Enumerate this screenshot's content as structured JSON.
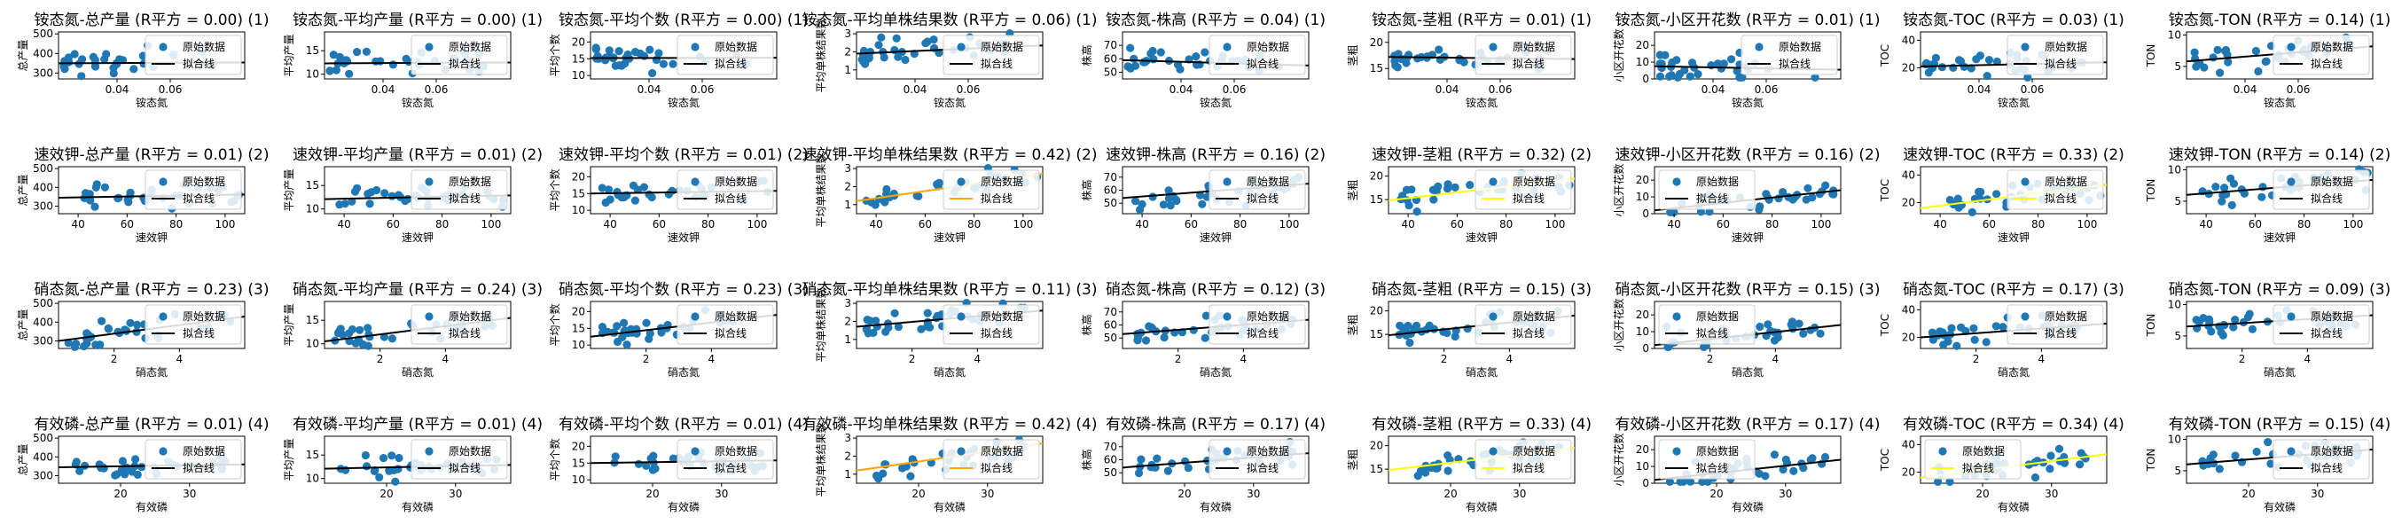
{
  "colors": {
    "points": "#1f77b4",
    "fit_black": "#000000",
    "fit_orange": "#ffa500",
    "fit_yellow": "#ffff00"
  },
  "legend": {
    "raw": "原始数据",
    "fit": "拟合线"
  },
  "chart_data": {
    "type": "scatter",
    "grid": false,
    "rows": [
      {
        "xlabel": "铵态氮",
        "xticks": [
          0.04,
          0.06
        ],
        "xlim": [
          0.018,
          0.088
        ],
        "kind": "amm",
        "plots": [
          {
            "title": "铵态氮-总产量 (R平方 = 0.00) (1)",
            "ylabel": "总产量",
            "ylim": [
              270,
              510
            ],
            "yticks": [
              300,
              400,
              500
            ],
            "fit": [
              [
                0.018,
                350
              ],
              [
                0.088,
                354
              ]
            ],
            "fit_color": "black",
            "legend": "right"
          },
          {
            "title": "铵态氮-平均产量 (R平方 = 0.00) (1)",
            "ylabel": "平均产量",
            "ylim": [
              9,
              19
            ],
            "yticks": [
              10,
              15
            ],
            "fit": [
              [
                0.018,
                12.3
              ],
              [
                0.088,
                12.5
              ]
            ],
            "fit_color": "black",
            "legend": "right"
          },
          {
            "title": "铵态氮-平均个数 (R平方 = 0.00) (1)",
            "ylabel": "平均个数",
            "ylim": [
              9,
              23
            ],
            "yticks": [
              10,
              15,
              20
            ],
            "fit": [
              [
                0.018,
                15.2
              ],
              [
                0.088,
                15.3
              ]
            ],
            "fit_color": "black",
            "legend": "right"
          },
          {
            "title": "铵态氮-平均单株结果数 (R平方 = 0.06) (1)",
            "ylabel": "平均单株结果数",
            "ylim": [
              0.5,
              3.1
            ],
            "yticks": [
              1,
              2,
              3
            ],
            "fit": [
              [
                0.018,
                1.9
              ],
              [
                0.088,
                2.35
              ]
            ],
            "fit_color": "black",
            "legend": "right"
          },
          {
            "title": "铵态氮-株高 (R平方 = 0.04) (1)",
            "ylabel": "株高",
            "ylim": [
              45,
              80
            ],
            "yticks": [
              50,
              60,
              70
            ],
            "fit": [
              [
                0.018,
                59
              ],
              [
                0.088,
                55
              ]
            ],
            "fit_color": "black",
            "legend": "right"
          },
          {
            "title": "铵态氮-茎粗 (R平方 = 0.01) (1)",
            "ylabel": "茎粗",
            "ylim": [
              13,
              22
            ],
            "yticks": [
              15,
              20
            ],
            "fit": [
              [
                0.018,
                17.2
              ],
              [
                0.088,
                16.8
              ]
            ],
            "fit_color": "black",
            "legend": "right"
          },
          {
            "title": "铵态氮-小区开花数 (R平方 = 0.01) (1)",
            "ylabel": "小区开花数",
            "ylim": [
              0,
              28
            ],
            "yticks": [
              0,
              10,
              20
            ],
            "fit": [
              [
                0.018,
                7.5
              ],
              [
                0.088,
                5.5
              ]
            ],
            "fit_color": "black",
            "legend": "right"
          },
          {
            "title": "铵态氮-TOC (R平方 = 0.03) (1)",
            "ylabel": "TOC",
            "ylim": [
              12,
              46
            ],
            "yticks": [
              20,
              40
            ],
            "fit": [
              [
                0.018,
                21
              ],
              [
                0.088,
                24
              ]
            ],
            "fit_color": "black",
            "legend": "right"
          },
          {
            "title": "铵态氮-TON (R平方 = 0.14) (1)",
            "ylabel": "TON",
            "ylim": [
              3,
              10.5
            ],
            "yticks": [
              5,
              10
            ],
            "fit": [
              [
                0.018,
                5.8
              ],
              [
                0.088,
                8.2
              ]
            ],
            "fit_color": "black",
            "legend": "right"
          }
        ]
      },
      {
        "xlabel": "速效钾",
        "xticks": [
          40,
          60,
          80,
          100
        ],
        "xlim": [
          32,
          108
        ],
        "kind": "pot",
        "plots": [
          {
            "title": "速效钾-总产量 (R平方 = 0.01) (2)",
            "ylabel": "总产量",
            "ylim": [
              260,
              510
            ],
            "yticks": [
              300,
              400,
              500
            ],
            "fit": [
              [
                32,
                345
              ],
              [
                108,
                362
              ]
            ],
            "fit_color": "black",
            "legend": "right"
          },
          {
            "title": "速效钾-平均产量 (R平方 = 0.01) (2)",
            "ylabel": "平均产量",
            "ylim": [
              9,
              19
            ],
            "yticks": [
              10,
              15
            ],
            "fit": [
              [
                32,
                12.1
              ],
              [
                108,
                12.9
              ]
            ],
            "fit_color": "black",
            "legend": "right"
          },
          {
            "title": "速效钾-平均个数 (R平方 = 0.01) (2)",
            "ylabel": "平均个数",
            "ylim": [
              9,
              23
            ],
            "yticks": [
              10,
              15,
              20
            ],
            "fit": [
              [
                32,
                15
              ],
              [
                108,
                15.8
              ]
            ],
            "fit_color": "black",
            "legend": "right"
          },
          {
            "title": "速效钾-平均单株结果数 (R平方 = 0.42) (2)",
            "ylabel": "平均单株结果数",
            "ylim": [
              0.5,
              3.1
            ],
            "yticks": [
              1,
              2,
              3
            ],
            "fit": [
              [
                32,
                1.2
              ],
              [
                108,
                2.7
              ]
            ],
            "fit_color": "orange",
            "legend": "right"
          },
          {
            "title": "速效钾-株高 (R平方 = 0.16) (2)",
            "ylabel": "株高",
            "ylim": [
              42,
              78
            ],
            "yticks": [
              50,
              60,
              70
            ],
            "fit": [
              [
                32,
                54
              ],
              [
                108,
                65
              ]
            ],
            "fit_color": "black",
            "legend": "right"
          },
          {
            "title": "速效钾-茎粗 (R平方 = 0.32) (2)",
            "ylabel": "茎粗",
            "ylim": [
              12,
              22
            ],
            "yticks": [
              15,
              20
            ],
            "fit": [
              [
                32,
                14.8
              ],
              [
                108,
                19.5
              ]
            ],
            "fit_color": "yellow",
            "legend": "right"
          },
          {
            "title": "速效钾-小区开花数 (R平方 = 0.16) (2)",
            "ylabel": "小区开花数",
            "ylim": [
              0,
              28
            ],
            "yticks": [
              0,
              10,
              20
            ],
            "fit": [
              [
                32,
                2
              ],
              [
                108,
                14
              ]
            ],
            "fit_color": "black",
            "legend": "left"
          },
          {
            "title": "速效钾-TOC (R平方 = 0.33) (2)",
            "ylabel": "TOC",
            "ylim": [
              12,
              46
            ],
            "yticks": [
              20,
              40
            ],
            "fit": [
              [
                32,
                16
              ],
              [
                108,
                33
              ]
            ],
            "fit_color": "yellow",
            "legend": "right"
          },
          {
            "title": "速效钾-TON (R平方 = 0.14) (2)",
            "ylabel": "TON",
            "ylim": [
              3,
              10.5
            ],
            "yticks": [
              5,
              10
            ],
            "fit": [
              [
                32,
                6
              ],
              [
                108,
                8.4
              ]
            ],
            "fit_color": "black",
            "legend": "right"
          }
        ]
      },
      {
        "xlabel": "硝态氮",
        "xticks": [
          2,
          4
        ],
        "xlim": [
          0.3,
          6.0
        ],
        "kind": "nit",
        "plots": [
          {
            "title": "硝态氮-总产量 (R平方 = 0.23) (3)",
            "ylabel": "总产量",
            "ylim": [
              260,
              510
            ],
            "yticks": [
              300,
              400,
              500
            ],
            "fit": [
              [
                0.3,
                300
              ],
              [
                6.0,
                430
              ]
            ],
            "fit_color": "black",
            "legend": "right"
          },
          {
            "title": "硝态氮-平均产量 (R平方 = 0.24) (3)",
            "ylabel": "平均产量",
            "ylim": [
              9,
              19
            ],
            "yticks": [
              10,
              15
            ],
            "fit": [
              [
                0.3,
                10.5
              ],
              [
                6.0,
                15.5
              ]
            ],
            "fit_color": "black",
            "legend": "right"
          },
          {
            "title": "硝态氮-平均个数 (R平方 = 0.23) (3)",
            "ylabel": "平均个数",
            "ylim": [
              9,
              23
            ],
            "yticks": [
              10,
              15,
              20
            ],
            "fit": [
              [
                0.3,
                12.5
              ],
              [
                6.0,
                19
              ]
            ],
            "fit_color": "black",
            "legend": "right"
          },
          {
            "title": "硝态氮-平均单株结果数 (R平方 = 0.11) (3)",
            "ylabel": "平均单株结果数",
            "ylim": [
              0.5,
              3.1
            ],
            "yticks": [
              1,
              2,
              3
            ],
            "fit": [
              [
                0.3,
                1.7
              ],
              [
                6.0,
                2.6
              ]
            ],
            "fit_color": "black",
            "legend": "right"
          },
          {
            "title": "硝态氮-株高 (R平方 = 0.12) (3)",
            "ylabel": "株高",
            "ylim": [
              42,
              78
            ],
            "yticks": [
              50,
              60,
              70
            ],
            "fit": [
              [
                0.3,
                53
              ],
              [
                6.0,
                64
              ]
            ],
            "fit_color": "black",
            "legend": "right"
          },
          {
            "title": "硝态氮-茎粗 (R平方 = 0.15) (3)",
            "ylabel": "茎粗",
            "ylim": [
              12,
              22
            ],
            "yticks": [
              15,
              20
            ],
            "fit": [
              [
                0.3,
                14.8
              ],
              [
                6.0,
                19
              ]
            ],
            "fit_color": "black",
            "legend": "right"
          },
          {
            "title": "硝态氮-小区开花数 (R平方 = 0.15) (3)",
            "ylabel": "小区开花数",
            "ylim": [
              0,
              28
            ],
            "yticks": [
              0,
              10,
              20
            ],
            "fit": [
              [
                0.3,
                2
              ],
              [
                6.0,
                14
              ]
            ],
            "fit_color": "black",
            "legend": "left"
          },
          {
            "title": "硝态氮-TOC (R平方 = 0.17) (3)",
            "ylabel": "TOC",
            "ylim": [
              12,
              46
            ],
            "yticks": [
              20,
              40
            ],
            "fit": [
              [
                0.3,
                20
              ],
              [
                6.0,
                30
              ]
            ],
            "fit_color": "black",
            "legend": "right"
          },
          {
            "title": "硝态氮-TON (R平方 = 0.09) (3)",
            "ylabel": "TON",
            "ylim": [
              3,
              10.5
            ],
            "yticks": [
              5,
              10
            ],
            "fit": [
              [
                0.3,
                6.5
              ],
              [
                6.0,
                8.3
              ]
            ],
            "fit_color": "black",
            "legend": "right"
          }
        ]
      },
      {
        "xlabel": "有效磷",
        "xticks": [
          20,
          30
        ],
        "xlim": [
          11,
          38
        ],
        "kind": "pho",
        "plots": [
          {
            "title": "有效磷-总产量 (R平方 = 0.01) (4)",
            "ylabel": "总产量",
            "ylim": [
              260,
              510
            ],
            "yticks": [
              300,
              400,
              500
            ],
            "fit": [
              [
                11,
                345
              ],
              [
                38,
                360
              ]
            ],
            "fit_color": "black",
            "legend": "right"
          },
          {
            "title": "有效磷-平均产量 (R平方 = 0.01) (4)",
            "ylabel": "平均产量",
            "ylim": [
              9,
              19
            ],
            "yticks": [
              10,
              15
            ],
            "fit": [
              [
                11,
                12.1
              ],
              [
                38,
                12.9
              ]
            ],
            "fit_color": "black",
            "legend": "right"
          },
          {
            "title": "有效磷-平均个数 (R平方 = 0.01) (4)",
            "ylabel": "平均个数",
            "ylim": [
              9,
              23
            ],
            "yticks": [
              10,
              15,
              20
            ],
            "fit": [
              [
                11,
                15
              ],
              [
                38,
                15.8
              ]
            ],
            "fit_color": "black",
            "legend": "right"
          },
          {
            "title": "有效磷-平均单株结果数 (R平方 = 0.42) (4)",
            "ylabel": "平均单株结果数",
            "ylim": [
              0.5,
              3.1
            ],
            "yticks": [
              1,
              2,
              3
            ],
            "fit": [
              [
                11,
                1.2
              ],
              [
                38,
                2.7
              ]
            ],
            "fit_color": "orange",
            "legend": "right"
          },
          {
            "title": "有效磷-株高 (R平方 = 0.17) (4)",
            "ylabel": "株高",
            "ylim": [
              42,
              78
            ],
            "yticks": [
              50,
              60,
              70
            ],
            "fit": [
              [
                11,
                54
              ],
              [
                38,
                65
              ]
            ],
            "fit_color": "black",
            "legend": "right"
          },
          {
            "title": "有效磷-茎粗 (R平方 = 0.33) (4)",
            "ylabel": "茎粗",
            "ylim": [
              12,
              22
            ],
            "yticks": [
              15,
              20
            ],
            "fit": [
              [
                11,
                14.8
              ],
              [
                38,
                19.5
              ]
            ],
            "fit_color": "yellow",
            "legend": "right"
          },
          {
            "title": "有效磷-小区开花数 (R平方 = 0.17) (4)",
            "ylabel": "小区开花数",
            "ylim": [
              0,
              28
            ],
            "yticks": [
              0,
              10,
              20
            ],
            "fit": [
              [
                11,
                2
              ],
              [
                38,
                14
              ]
            ],
            "fit_color": "black",
            "legend": "left"
          },
          {
            "title": "有效磷-TOC (R平方 = 0.34) (4)",
            "ylabel": "TOC",
            "ylim": [
              12,
              46
            ],
            "yticks": [
              20,
              40
            ],
            "fit": [
              [
                11,
                16
              ],
              [
                38,
                33
              ]
            ],
            "fit_color": "yellow",
            "legend": "left"
          },
          {
            "title": "有效磷-TON (R平方 = 0.15) (4)",
            "ylabel": "TON",
            "ylim": [
              3,
              10.5
            ],
            "yticks": [
              5,
              10
            ],
            "fit": [
              [
                11,
                6
              ],
              [
                38,
                8.4
              ]
            ],
            "fit_color": "black",
            "legend": "right"
          }
        ]
      }
    ]
  }
}
